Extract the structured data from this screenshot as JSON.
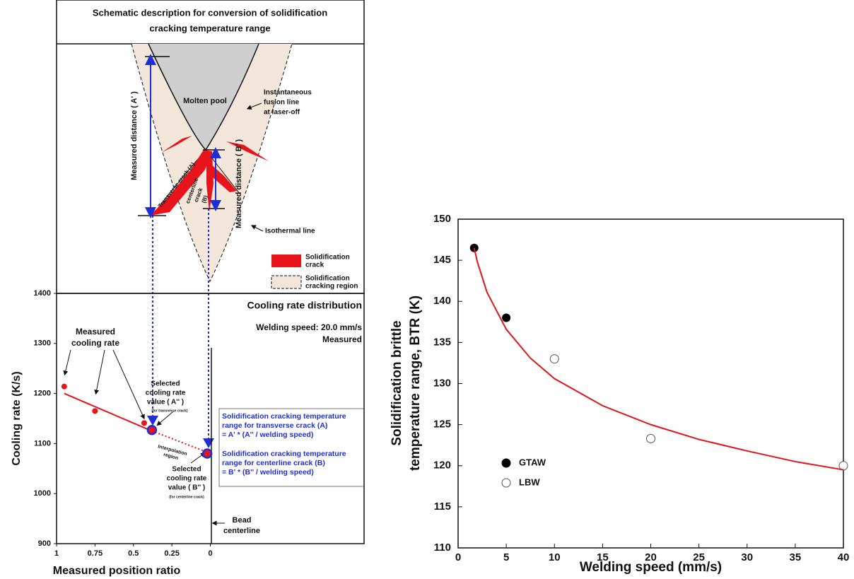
{
  "schematic": {
    "title": [
      "Schematic description for conversion of solidification",
      "cracking temperature range"
    ],
    "molten_pool": "Molten pool",
    "fusion_line": [
      "Instantaneous",
      "fusion line",
      "at laser-off"
    ],
    "distance_a": "Measured distance ( A' )",
    "distance_b": "Measured distance ( B' )",
    "transverse_crack": "Transverse crack (A)",
    "centerline_crack": [
      "centerline",
      "crack",
      "(B)"
    ],
    "isothermal_line": "Isothermal line",
    "legend": [
      [
        "Solidification",
        "crack"
      ],
      [
        "Solidification",
        "cracking region"
      ]
    ]
  },
  "chart_data": [
    {
      "type": "line",
      "title": "Cooling rate distribution",
      "subtitle": [
        "Welding speed: 20.0 mm/s",
        "Measured"
      ],
      "xlabel": "Measured position ratio",
      "ylabel": "Cooling rate (K/s)",
      "xlim": [
        1,
        -1
      ],
      "ylim": [
        900,
        1400
      ],
      "xticks": [
        1,
        0.75,
        0.5,
        0.25,
        0
      ],
      "yticks": [
        900,
        1000,
        1100,
        1200,
        1300,
        1400
      ],
      "series": [
        {
          "mode": "markers",
          "color": "#e8141b",
          "x": [
            0.95,
            0.75,
            0.43
          ],
          "values": [
            1214,
            1165,
            1141
          ]
        },
        {
          "mode": "line",
          "color": "#e8141b",
          "x": [
            0.95,
            0.38
          ],
          "values": [
            1200,
            1125
          ]
        },
        {
          "mode": "dotted",
          "color": "#e8141b",
          "x": [
            0.38,
            0.25,
            0.1,
            0.02
          ],
          "values": [
            1125,
            1110,
            1092,
            1083
          ]
        },
        {
          "mode": "selected",
          "color": "#1f2fd6",
          "x": [
            0.38,
            0.02
          ],
          "values": [
            1127,
            1080
          ]
        }
      ],
      "annotations": {
        "measured": [
          "Measured",
          "cooling rate"
        ],
        "selected_a": [
          "Selected",
          "cooling rate",
          "value ( A'' )"
        ],
        "selected_a_note": "(for transverse crack)",
        "interpolation": [
          "Interpolation",
          "region"
        ],
        "selected_b": [
          "Selected",
          "cooling rate",
          "value ( B'' )"
        ],
        "selected_b_note": "(for centerline crack)",
        "bead": [
          "Bead",
          "centerline"
        ],
        "box": [
          [
            "Solidification cracking temperature",
            "range for transverse crack (A)",
            "= A' * (A'' / welding speed)"
          ],
          [
            "Solidification cracking temperature",
            "range for centerline crack (B)",
            "= B' * (B'' / welding speed)"
          ]
        ]
      }
    },
    {
      "type": "scatter",
      "xlabel": "Welding speed (mm/s)",
      "ylabel": [
        "Solidification brittle",
        "temperature range, BTR (K)"
      ],
      "xlim": [
        0,
        40
      ],
      "ylim": [
        110,
        150
      ],
      "xticks": [
        0,
        5,
        10,
        15,
        20,
        25,
        30,
        35,
        40
      ],
      "yticks": [
        110,
        115,
        120,
        125,
        130,
        135,
        140,
        145,
        150
      ],
      "legend": "lower left",
      "series": [
        {
          "name": "GTAW",
          "mode": "markers",
          "color": "#000000",
          "x": [
            1.67,
            5
          ],
          "values": [
            146.5,
            138
          ]
        },
        {
          "name": "LBW",
          "mode": "open",
          "color": "#555555",
          "x": [
            10,
            20,
            40
          ],
          "values": [
            133,
            123.3,
            120
          ]
        },
        {
          "mode": "line",
          "color": "#e0141b",
          "x": [
            1.67,
            2,
            3,
            5,
            7.5,
            10,
            15,
            20,
            25,
            30,
            35,
            40
          ],
          "values": [
            146.5,
            144.8,
            141.1,
            136.6,
            133.1,
            130.6,
            127.3,
            125.0,
            123.2,
            121.8,
            120.5,
            119.5
          ]
        }
      ]
    }
  ]
}
